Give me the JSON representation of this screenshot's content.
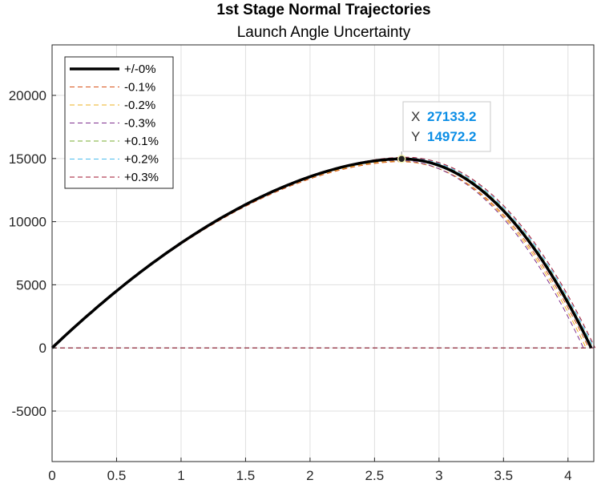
{
  "chart_data": {
    "type": "line",
    "title": "1st Stage Normal Trajectories",
    "subtitle": "Launch Angle Uncertainty",
    "xlabel": "",
    "ylabel": "",
    "xlim": [
      0,
      4.2
    ],
    "ylim": [
      -9000,
      24000
    ],
    "xticks": [
      "0",
      "0.5",
      "1",
      "1.5",
      "2",
      "2.5",
      "3",
      "3.5",
      "4"
    ],
    "yticks": [
      "-5000",
      "0",
      "5000",
      "10000",
      "15000",
      "20000"
    ],
    "grid": true,
    "legend_position": "top-left",
    "series": [
      {
        "name": "+/-0%",
        "color": "#000000",
        "style": "solid",
        "range": 4.18,
        "apex_x": 2.7,
        "apex_y": 14972
      },
      {
        "name": "-0.1%",
        "color": "#d95319",
        "style": "dashed",
        "range": 4.16,
        "apex_x": 2.69,
        "apex_y": 14750
      },
      {
        "name": "-0.2%",
        "color": "#edb120",
        "style": "dashed",
        "range": 4.14,
        "apex_x": 2.68,
        "apex_y": 14800
      },
      {
        "name": "-0.3%",
        "color": "#7e2f8e",
        "style": "dashed",
        "range": 4.12,
        "apex_x": 2.67,
        "apex_y": 14850
      },
      {
        "name": "+0.1%",
        "color": "#77ac30",
        "style": "dashed",
        "range": 4.19,
        "apex_x": 2.71,
        "apex_y": 15030
      },
      {
        "name": "+0.2%",
        "color": "#4dbeee",
        "style": "dashed",
        "range": 4.2,
        "apex_x": 2.72,
        "apex_y": 15060
      },
      {
        "name": "+0.3%",
        "color": "#a2142f",
        "style": "dashed",
        "range": 4.21,
        "apex_x": 2.73,
        "apex_y": 15100
      }
    ],
    "datatip": {
      "x_label": "X",
      "x_value": "27133.2",
      "y_label": "Y",
      "y_value": "14972.2",
      "point_x": 2.71,
      "point_y": 14972
    }
  }
}
